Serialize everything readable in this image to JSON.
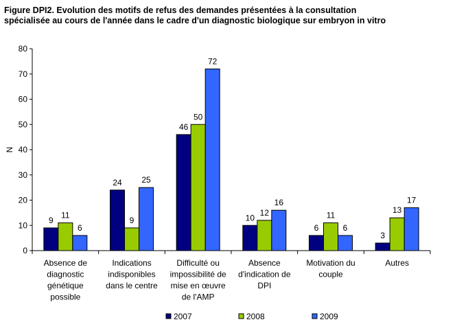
{
  "chart_data": {
    "type": "bar",
    "title_lines": [
      "Figure DPI2. Evolution des motifs de refus des demandes présentées à la consultation",
      "spécialisée au cours de l'année dans le cadre d'un diagnostic biologique sur embryon in vitro"
    ],
    "ylabel": "N",
    "xlabel": "",
    "ylim": [
      0,
      80
    ],
    "yticks": [
      0,
      10,
      20,
      30,
      40,
      50,
      60,
      70,
      80
    ],
    "categories": [
      [
        "Absence de",
        "diagnostic",
        "génétique",
        "possible"
      ],
      [
        "Indications",
        "indisponibles",
        "dans le centre"
      ],
      [
        "Difficulté ou",
        "impossibilité de",
        "mise en œuvre",
        "de l'AMP"
      ],
      [
        "Absence",
        "d'indication de",
        "DPI"
      ],
      [
        "Motivation du",
        "couple"
      ],
      [
        "Autres"
      ]
    ],
    "series": [
      {
        "name": "2007",
        "color": "#000080",
        "values": [
          9,
          24,
          46,
          10,
          6,
          3
        ]
      },
      {
        "name": "2008",
        "color": "#99CC00",
        "values": [
          11,
          9,
          50,
          12,
          11,
          13
        ]
      },
      {
        "name": "2009",
        "color": "#3366FF",
        "values": [
          6,
          25,
          72,
          16,
          6,
          17
        ]
      }
    ],
    "grid": false,
    "legend_position": "bottom"
  }
}
